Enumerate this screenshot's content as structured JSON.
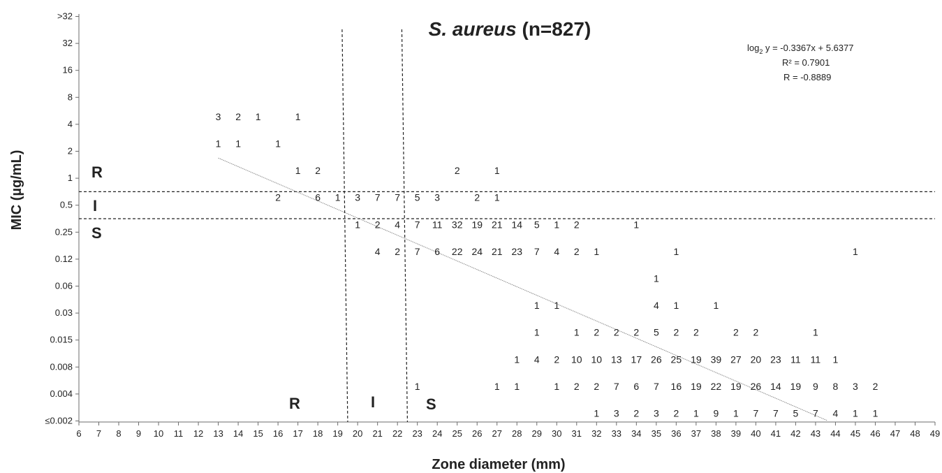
{
  "chart_data": {
    "type": "scatter",
    "title_italic": "S. aureus",
    "title_rest": " (n=827)",
    "xlabel": "Zone diameter (mm)",
    "ylabel": "MIC (µg/mL)",
    "xlim": [
      6,
      49
    ],
    "x_ticks": [
      "6",
      "7",
      "8",
      "9",
      "10",
      "11",
      "12",
      "13",
      "14",
      "15",
      "16",
      "17",
      "18",
      "19",
      "20",
      "21",
      "22",
      "23",
      "24",
      "25",
      "26",
      "27",
      "28",
      "29",
      "30",
      "31",
      "32",
      "33",
      "34",
      "35",
      "36",
      "37",
      "38",
      "39",
      "40",
      "41",
      "42",
      "43",
      "44",
      "45",
      "46",
      "47",
      "48",
      "49"
    ],
    "y_ticks": [
      "≤0.002",
      "0.004",
      "0.008",
      "0.015",
      "0.03",
      "0.06",
      "0.12",
      "0.25",
      "0.5",
      "1",
      "2",
      "4",
      "8",
      "16",
      "32",
      ">32"
    ],
    "grid": false,
    "equation": {
      "line1_prefix": "log",
      "line1_sub": "2",
      "line1_suffix": " y = -0.3367x + 5.6377",
      "line2": "R² = 0.7901",
      "line3": "R = -0.8889",
      "slope": -0.3367,
      "intercept": 5.6377
    },
    "breakpoints": {
      "zone_resistant_max": 19.5,
      "zone_susceptible_min": 22.5,
      "mic_susceptible_max": 0.25,
      "mic_resistant_min": 1
    },
    "zone_labels": {
      "r": "R",
      "i": "I",
      "s": "S"
    },
    "counts": [
      {
        "x": 13,
        "mic": "4",
        "n": 3
      },
      {
        "x": 14,
        "mic": "4",
        "n": 2
      },
      {
        "x": 15,
        "mic": "4",
        "n": 1
      },
      {
        "x": 17,
        "mic": "4",
        "n": 1
      },
      {
        "x": 13,
        "mic": "2",
        "n": 1
      },
      {
        "x": 14,
        "mic": "2",
        "n": 1
      },
      {
        "x": 16,
        "mic": "2",
        "n": 1
      },
      {
        "x": 17,
        "mic": "1",
        "n": 1
      },
      {
        "x": 18,
        "mic": "1",
        "n": 2
      },
      {
        "x": 25,
        "mic": "1",
        "n": 2
      },
      {
        "x": 27,
        "mic": "1",
        "n": 1
      },
      {
        "x": 16,
        "mic": "0.5",
        "n": 2
      },
      {
        "x": 18,
        "mic": "0.5",
        "n": 6
      },
      {
        "x": 19,
        "mic": "0.5",
        "n": 1
      },
      {
        "x": 20,
        "mic": "0.5",
        "n": 3
      },
      {
        "x": 21,
        "mic": "0.5",
        "n": 7
      },
      {
        "x": 22,
        "mic": "0.5",
        "n": 7
      },
      {
        "x": 23,
        "mic": "0.5",
        "n": 5
      },
      {
        "x": 24,
        "mic": "0.5",
        "n": 3
      },
      {
        "x": 26,
        "mic": "0.5",
        "n": 2
      },
      {
        "x": 27,
        "mic": "0.5",
        "n": 1
      },
      {
        "x": 20,
        "mic": "0.25",
        "n": 1
      },
      {
        "x": 21,
        "mic": "0.25",
        "n": 2
      },
      {
        "x": 22,
        "mic": "0.25",
        "n": 4
      },
      {
        "x": 23,
        "mic": "0.25",
        "n": 7
      },
      {
        "x": 24,
        "mic": "0.25",
        "n": 11
      },
      {
        "x": 25,
        "mic": "0.25",
        "n": 32
      },
      {
        "x": 26,
        "mic": "0.25",
        "n": 19
      },
      {
        "x": 27,
        "mic": "0.25",
        "n": 21
      },
      {
        "x": 28,
        "mic": "0.25",
        "n": 14
      },
      {
        "x": 29,
        "mic": "0.25",
        "n": 5
      },
      {
        "x": 30,
        "mic": "0.25",
        "n": 1
      },
      {
        "x": 31,
        "mic": "0.25",
        "n": 2
      },
      {
        "x": 34,
        "mic": "0.25",
        "n": 1
      },
      {
        "x": 21,
        "mic": "0.12",
        "n": 4
      },
      {
        "x": 22,
        "mic": "0.12",
        "n": 2
      },
      {
        "x": 23,
        "mic": "0.12",
        "n": 7
      },
      {
        "x": 24,
        "mic": "0.12",
        "n": 6
      },
      {
        "x": 25,
        "mic": "0.12",
        "n": 22
      },
      {
        "x": 26,
        "mic": "0.12",
        "n": 24
      },
      {
        "x": 27,
        "mic": "0.12",
        "n": 21
      },
      {
        "x": 28,
        "mic": "0.12",
        "n": 23
      },
      {
        "x": 29,
        "mic": "0.12",
        "n": 7
      },
      {
        "x": 30,
        "mic": "0.12",
        "n": 4
      },
      {
        "x": 31,
        "mic": "0.12",
        "n": 2
      },
      {
        "x": 32,
        "mic": "0.12",
        "n": 1
      },
      {
        "x": 36,
        "mic": "0.12",
        "n": 1
      },
      {
        "x": 45,
        "mic": "0.12",
        "n": 1
      },
      {
        "x": 35,
        "mic": "0.06",
        "n": 1
      },
      {
        "x": 29,
        "mic": "0.03",
        "n": 1
      },
      {
        "x": 30,
        "mic": "0.03",
        "n": 1
      },
      {
        "x": 35,
        "mic": "0.03",
        "n": 4
      },
      {
        "x": 36,
        "mic": "0.03",
        "n": 1
      },
      {
        "x": 38,
        "mic": "0.03",
        "n": 1
      },
      {
        "x": 29,
        "mic": "0.015",
        "n": 1
      },
      {
        "x": 31,
        "mic": "0.015",
        "n": 1
      },
      {
        "x": 32,
        "mic": "0.015",
        "n": 2
      },
      {
        "x": 33,
        "mic": "0.015",
        "n": 2
      },
      {
        "x": 34,
        "mic": "0.015",
        "n": 2
      },
      {
        "x": 35,
        "mic": "0.015",
        "n": 5
      },
      {
        "x": 36,
        "mic": "0.015",
        "n": 2
      },
      {
        "x": 37,
        "mic": "0.015",
        "n": 2
      },
      {
        "x": 39,
        "mic": "0.015",
        "n": 2
      },
      {
        "x": 40,
        "mic": "0.015",
        "n": 2
      },
      {
        "x": 43,
        "mic": "0.015",
        "n": 1
      },
      {
        "x": 28,
        "mic": "0.008",
        "n": 1
      },
      {
        "x": 29,
        "mic": "0.008",
        "n": 4
      },
      {
        "x": 30,
        "mic": "0.008",
        "n": 2
      },
      {
        "x": 31,
        "mic": "0.008",
        "n": 10
      },
      {
        "x": 32,
        "mic": "0.008",
        "n": 10
      },
      {
        "x": 33,
        "mic": "0.008",
        "n": 13
      },
      {
        "x": 34,
        "mic": "0.008",
        "n": 17
      },
      {
        "x": 35,
        "mic": "0.008",
        "n": 26
      },
      {
        "x": 36,
        "mic": "0.008",
        "n": 25
      },
      {
        "x": 37,
        "mic": "0.008",
        "n": 19
      },
      {
        "x": 38,
        "mic": "0.008",
        "n": 39
      },
      {
        "x": 39,
        "mic": "0.008",
        "n": 27
      },
      {
        "x": 40,
        "mic": "0.008",
        "n": 20
      },
      {
        "x": 41,
        "mic": "0.008",
        "n": 23
      },
      {
        "x": 42,
        "mic": "0.008",
        "n": 11
      },
      {
        "x": 43,
        "mic": "0.008",
        "n": 11
      },
      {
        "x": 44,
        "mic": "0.008",
        "n": 1
      },
      {
        "x": 23,
        "mic": "0.004",
        "n": 1
      },
      {
        "x": 27,
        "mic": "0.004",
        "n": 1
      },
      {
        "x": 28,
        "mic": "0.004",
        "n": 1
      },
      {
        "x": 30,
        "mic": "0.004",
        "n": 1
      },
      {
        "x": 31,
        "mic": "0.004",
        "n": 2
      },
      {
        "x": 32,
        "mic": "0.004",
        "n": 2
      },
      {
        "x": 33,
        "mic": "0.004",
        "n": 7
      },
      {
        "x": 34,
        "mic": "0.004",
        "n": 6
      },
      {
        "x": 35,
        "mic": "0.004",
        "n": 7
      },
      {
        "x": 36,
        "mic": "0.004",
        "n": 16
      },
      {
        "x": 37,
        "mic": "0.004",
        "n": 19
      },
      {
        "x": 38,
        "mic": "0.004",
        "n": 22
      },
      {
        "x": 39,
        "mic": "0.004",
        "n": 19
      },
      {
        "x": 40,
        "mic": "0.004",
        "n": 26
      },
      {
        "x": 41,
        "mic": "0.004",
        "n": 14
      },
      {
        "x": 42,
        "mic": "0.004",
        "n": 19
      },
      {
        "x": 43,
        "mic": "0.004",
        "n": 9
      },
      {
        "x": 44,
        "mic": "0.004",
        "n": 8
      },
      {
        "x": 45,
        "mic": "0.004",
        "n": 3
      },
      {
        "x": 46,
        "mic": "0.004",
        "n": 2
      },
      {
        "x": 32,
        "mic": "≤0.002",
        "n": 1
      },
      {
        "x": 33,
        "mic": "≤0.002",
        "n": 3
      },
      {
        "x": 34,
        "mic": "≤0.002",
        "n": 2
      },
      {
        "x": 35,
        "mic": "≤0.002",
        "n": 3
      },
      {
        "x": 36,
        "mic": "≤0.002",
        "n": 2
      },
      {
        "x": 37,
        "mic": "≤0.002",
        "n": 1
      },
      {
        "x": 38,
        "mic": "≤0.002",
        "n": 9
      },
      {
        "x": 39,
        "mic": "≤0.002",
        "n": 1
      },
      {
        "x": 40,
        "mic": "≤0.002",
        "n": 7
      },
      {
        "x": 41,
        "mic": "≤0.002",
        "n": 7
      },
      {
        "x": 42,
        "mic": "≤0.002",
        "n": 5
      },
      {
        "x": 43,
        "mic": "≤0.002",
        "n": 7
      },
      {
        "x": 44,
        "mic": "≤0.002",
        "n": 4
      },
      {
        "x": 45,
        "mic": "≤0.002",
        "n": 1
      },
      {
        "x": 46,
        "mic": "≤0.002",
        "n": 1
      }
    ]
  }
}
